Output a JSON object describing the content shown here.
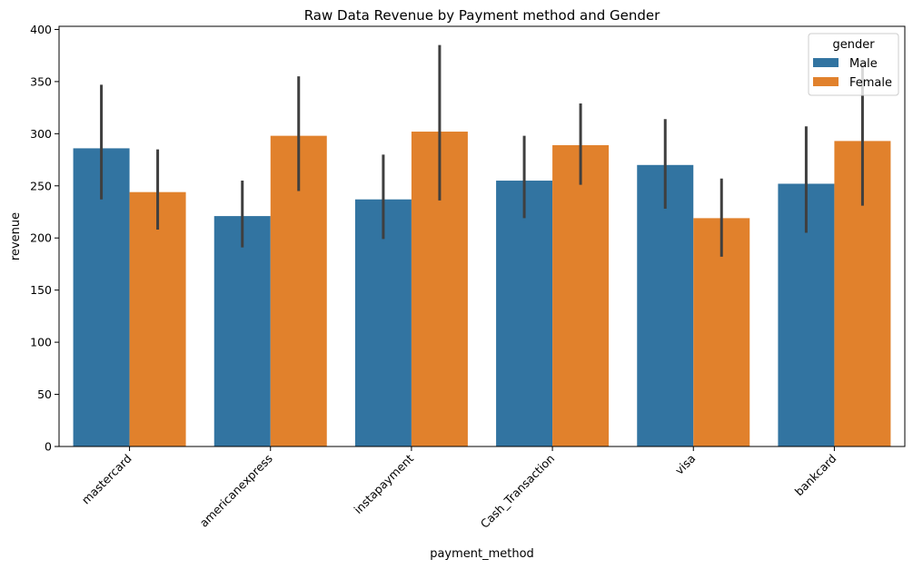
{
  "chart_data": {
    "type": "bar",
    "title": "Raw Data Revenue by Payment method and Gender",
    "xlabel": "payment_method",
    "ylabel": "revenue",
    "ylim": [
      0,
      403
    ],
    "yticks": [
      0,
      50,
      100,
      150,
      200,
      250,
      300,
      350,
      400
    ],
    "categories": [
      "mastercard",
      "americanexpress",
      "instapayment",
      "Cash_Transaction",
      "visa",
      "bankcard"
    ],
    "series": [
      {
        "name": "Male",
        "color": "#3274a1",
        "values": [
          286,
          221,
          237,
          255,
          270,
          252
        ],
        "ci_low": [
          237,
          191,
          199,
          219,
          228,
          205
        ],
        "ci_high": [
          347,
          255,
          280,
          298,
          314,
          307
        ]
      },
      {
        "name": "Female",
        "color": "#e1812c",
        "values": [
          244,
          298,
          302,
          289,
          219,
          293
        ],
        "ci_low": [
          208,
          245,
          236,
          251,
          182,
          231
        ],
        "ci_high": [
          285,
          355,
          385,
          329,
          257,
          366
        ]
      }
    ],
    "legend": {
      "title": "gender",
      "placement": "top-right"
    },
    "grid": false,
    "errorbar_color": "#3f3f3f"
  }
}
